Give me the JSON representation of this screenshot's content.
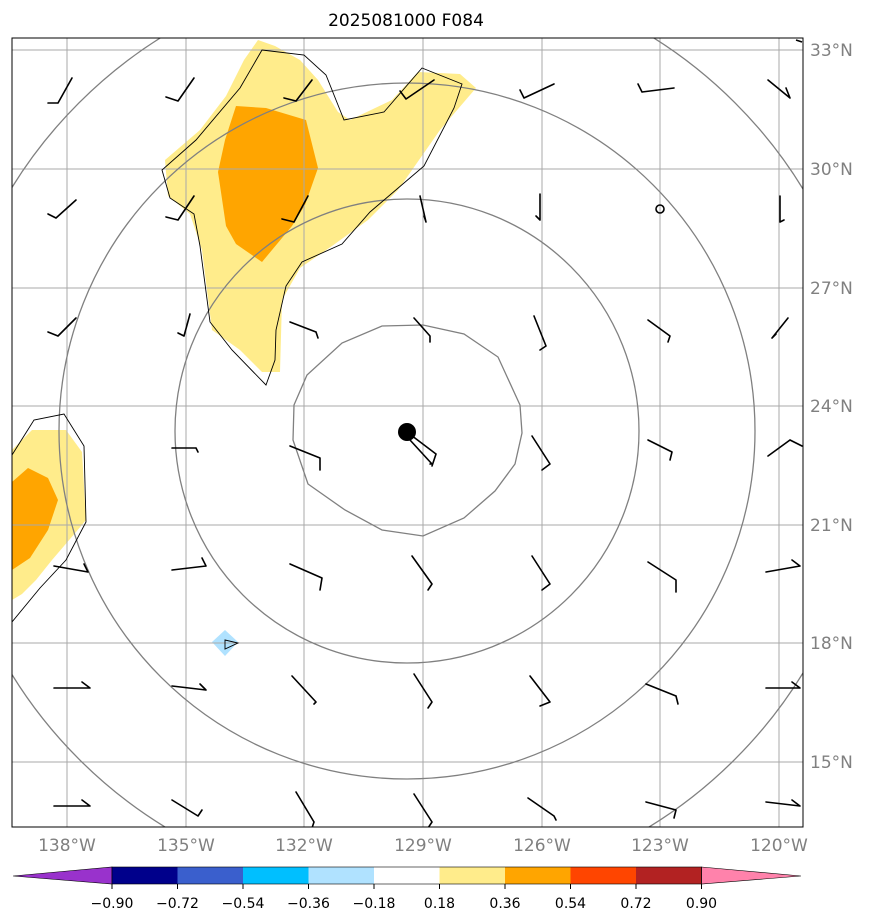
{
  "title": "2025081000 F084",
  "lat_labels": [
    "33°N",
    "30°N",
    "27°N",
    "24°N",
    "21°N",
    "18°N",
    "15°N"
  ],
  "lat_values": [
    33,
    30,
    27,
    24,
    21,
    18,
    15
  ],
  "lon_labels": [
    "138°W",
    "135°W",
    "132°W",
    "129°W",
    "126°W",
    "123°W",
    "120°W"
  ],
  "lon_values": [
    -138,
    -135,
    -132,
    -129,
    -126,
    -123,
    -120
  ],
  "extent": {
    "lon_min": -139.4,
    "lon_max": -119.4,
    "lat_min": 13.4,
    "lat_max": 33.3
  },
  "storm_center": {
    "lon": -129.4,
    "lat": 23.4
  },
  "colorbar": {
    "ticks": [
      "−0.90",
      "−0.72",
      "−0.54",
      "−0.36",
      "−0.18",
      "0.18",
      "0.36",
      "0.54",
      "0.72",
      "0.90"
    ],
    "colors": {
      "under": "#9932cc",
      "bins": [
        "#00008b",
        "#3a5fcd",
        "#00bfff",
        "#b0e2ff",
        "#ffffff",
        "#ffec8b",
        "#ffa500",
        "#ff4500",
        "#b22222"
      ],
      "over": "#ff82ab"
    }
  },
  "colors": {
    "grid": "#a9a9a9",
    "rings": "#808080",
    "coast": "#000000",
    "barb": "#000000"
  }
}
